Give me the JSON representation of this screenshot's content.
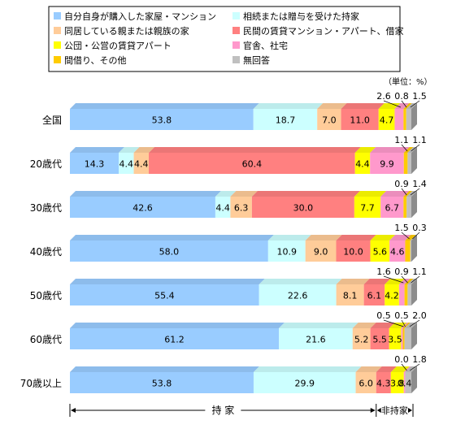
{
  "chart_data": {
    "type": "bar",
    "orientation": "horizontal",
    "stacked": true,
    "percent_stacked": true,
    "unit_label": "（単位：%）",
    "categories": [
      "全国",
      "20歳代",
      "30歳代",
      "40歳代",
      "50歳代",
      "60歳代",
      "70歳以上"
    ],
    "series": [
      {
        "name": "自分自身が購入した家屋・マンション",
        "color": "#99ccff",
        "values": [
          53.8,
          14.3,
          42.6,
          58.0,
          55.4,
          61.2,
          53.8
        ]
      },
      {
        "name": "相続または贈与を受けた持家",
        "color": "#ccffff",
        "values": [
          18.7,
          4.4,
          4.4,
          10.9,
          22.6,
          21.6,
          29.9
        ]
      },
      {
        "name": "同居している親または親族の家",
        "color": "#ffcc99",
        "values": [
          7.0,
          4.4,
          6.3,
          9.0,
          8.1,
          5.2,
          6.0
        ]
      },
      {
        "name": "民間の賃貸マンション・アパート、借家",
        "color": "#ff8080",
        "values": [
          11.0,
          60.4,
          30.0,
          10.0,
          6.1,
          5.5,
          4.3
        ]
      },
      {
        "name": "公団・公営の賃貸アパート",
        "color": "#ffff00",
        "values": [
          4.7,
          4.4,
          7.7,
          5.6,
          4.2,
          3.5,
          3.8
        ]
      },
      {
        "name": "官舎、社宅",
        "color": "#ff99cc",
        "values": [
          2.6,
          9.9,
          6.7,
          4.6,
          1.6,
          0.5,
          0.4
        ]
      },
      {
        "name": "間借り、その他",
        "color": "#ffcc00",
        "values": [
          0.8,
          1.1,
          0.9,
          1.5,
          0.9,
          0.5,
          0.0
        ]
      },
      {
        "name": "無回答",
        "color": "#c0c0c0",
        "values": [
          1.5,
          1.1,
          1.4,
          0.3,
          1.1,
          2.0,
          1.8
        ]
      }
    ],
    "label_placement": [
      [
        "in",
        "in",
        "in",
        "in",
        "in",
        "above",
        "above",
        "above"
      ],
      [
        "in",
        "in",
        "in",
        "in",
        "in",
        "in",
        "above",
        "above"
      ],
      [
        "in",
        "in",
        "in",
        "in",
        "in",
        "in",
        "above",
        "above"
      ],
      [
        "in",
        "in",
        "in",
        "in",
        "in",
        "in",
        "above",
        "above"
      ],
      [
        "in",
        "in",
        "in",
        "in",
        "in",
        "above",
        "above",
        "above"
      ],
      [
        "in",
        "in",
        "in",
        "in",
        "in",
        "above",
        "above",
        "above"
      ],
      [
        "in",
        "in",
        "in",
        "in",
        "in",
        "in",
        "above",
        "above"
      ]
    ],
    "groups": [
      {
        "label": "持 家",
        "series_range": [
          0,
          2
        ]
      },
      {
        "label": "非持家",
        "series_range": [
          3,
          7
        ]
      }
    ],
    "xlim": [
      0,
      100
    ],
    "legend_position": "top"
  }
}
